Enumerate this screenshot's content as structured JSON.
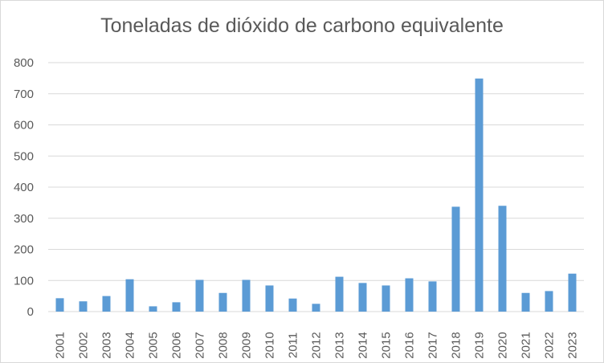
{
  "chart_data": {
    "type": "bar",
    "title": "Toneladas de dióxido de carbono equivalente",
    "xlabel": "",
    "ylabel": "",
    "categories": [
      "2001",
      "2002",
      "2003",
      "2004",
      "2005",
      "2006",
      "2007",
      "2008",
      "2009",
      "2010",
      "2011",
      "2012",
      "2013",
      "2014",
      "2015",
      "2016",
      "2017",
      "2018",
      "2019",
      "2020",
      "2021",
      "2022",
      "2023"
    ],
    "values": [
      43,
      33,
      50,
      104,
      17,
      30,
      102,
      60,
      102,
      84,
      42,
      25,
      112,
      92,
      84,
      107,
      97,
      337,
      749,
      340,
      60,
      66,
      122
    ],
    "ylim": [
      0,
      800
    ],
    "yticks": [
      0,
      100,
      200,
      300,
      400,
      500,
      600,
      700,
      800
    ],
    "grid": true,
    "legend": "none",
    "bar_color": "#5b9bd5",
    "grid_color": "#d9d9d9",
    "text_color": "#595959"
  }
}
